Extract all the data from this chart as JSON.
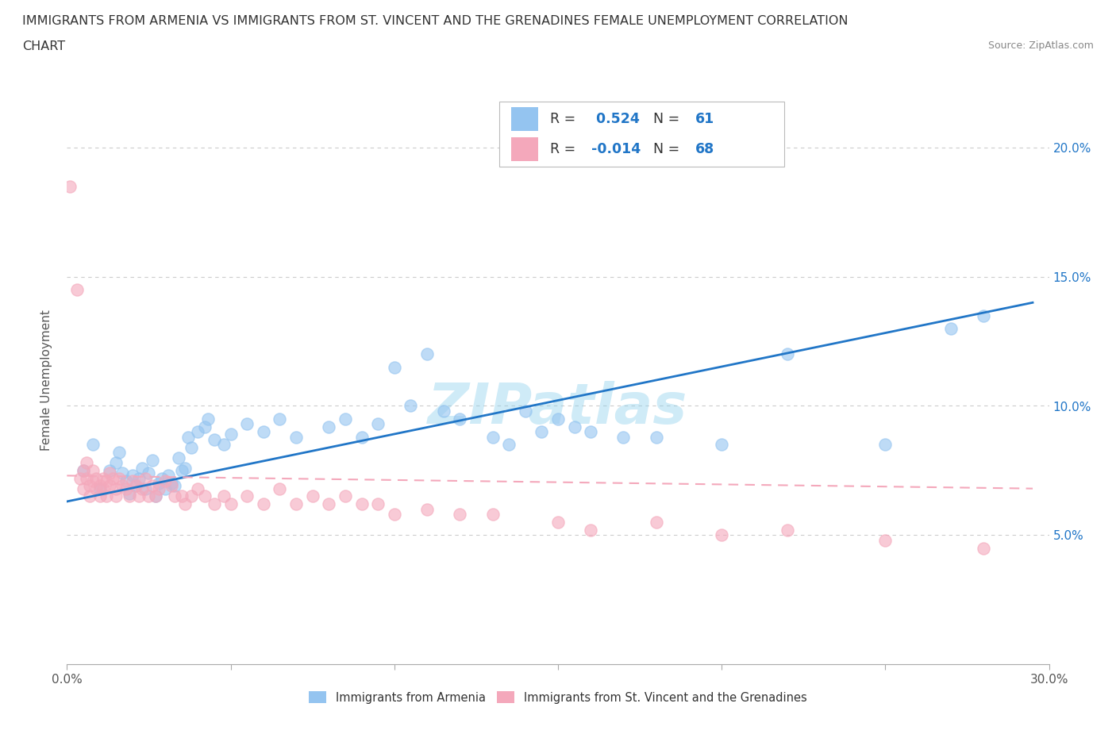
{
  "title_line1": "IMMIGRANTS FROM ARMENIA VS IMMIGRANTS FROM ST. VINCENT AND THE GRENADINES FEMALE UNEMPLOYMENT CORRELATION",
  "title_line2": "CHART",
  "source": "Source: ZipAtlas.com",
  "ylabel": "Female Unemployment",
  "xlim": [
    0.0,
    0.3
  ],
  "ylim": [
    0.0,
    0.22
  ],
  "xticks": [
    0.0,
    0.05,
    0.1,
    0.15,
    0.2,
    0.25,
    0.3
  ],
  "yticks": [
    0.05,
    0.1,
    0.15,
    0.2
  ],
  "ytick_labels_right": [
    "5.0%",
    "10.0%",
    "15.0%",
    "20.0%"
  ],
  "armenia_color": "#94C4F0",
  "svg_color": "#F4A8BB",
  "armenia_R": 0.524,
  "armenia_N": 61,
  "svg_R": -0.014,
  "svg_N": 68,
  "armenia_line_color": "#2176C7",
  "svg_line_color": "#F4A8BB",
  "watermark": "ZIPatlas",
  "armenia_scatter_x": [
    0.005,
    0.008,
    0.01,
    0.013,
    0.015,
    0.016,
    0.017,
    0.018,
    0.019,
    0.02,
    0.021,
    0.022,
    0.023,
    0.024,
    0.025,
    0.026,
    0.027,
    0.028,
    0.029,
    0.03,
    0.031,
    0.032,
    0.033,
    0.034,
    0.035,
    0.036,
    0.037,
    0.038,
    0.04,
    0.042,
    0.043,
    0.045,
    0.048,
    0.05,
    0.055,
    0.06,
    0.065,
    0.07,
    0.08,
    0.085,
    0.09,
    0.095,
    0.1,
    0.105,
    0.11,
    0.115,
    0.12,
    0.13,
    0.135,
    0.14,
    0.145,
    0.15,
    0.155,
    0.16,
    0.17,
    0.18,
    0.2,
    0.22,
    0.25,
    0.27,
    0.28
  ],
  "armenia_scatter_y": [
    0.075,
    0.085,
    0.068,
    0.075,
    0.078,
    0.082,
    0.074,
    0.071,
    0.066,
    0.073,
    0.069,
    0.072,
    0.076,
    0.068,
    0.074,
    0.079,
    0.065,
    0.07,
    0.072,
    0.068,
    0.073,
    0.07,
    0.069,
    0.08,
    0.075,
    0.076,
    0.088,
    0.084,
    0.09,
    0.092,
    0.095,
    0.087,
    0.085,
    0.089,
    0.093,
    0.09,
    0.095,
    0.088,
    0.092,
    0.095,
    0.088,
    0.093,
    0.115,
    0.1,
    0.12,
    0.098,
    0.095,
    0.088,
    0.085,
    0.098,
    0.09,
    0.095,
    0.092,
    0.09,
    0.088,
    0.088,
    0.085,
    0.12,
    0.085,
    0.13,
    0.135
  ],
  "svg_scatter_x": [
    0.001,
    0.003,
    0.004,
    0.005,
    0.005,
    0.006,
    0.006,
    0.007,
    0.007,
    0.008,
    0.008,
    0.009,
    0.009,
    0.01,
    0.01,
    0.011,
    0.011,
    0.012,
    0.012,
    0.013,
    0.013,
    0.014,
    0.015,
    0.015,
    0.016,
    0.017,
    0.018,
    0.019,
    0.02,
    0.021,
    0.022,
    0.023,
    0.024,
    0.025,
    0.026,
    0.027,
    0.028,
    0.03,
    0.032,
    0.033,
    0.035,
    0.036,
    0.038,
    0.04,
    0.042,
    0.045,
    0.048,
    0.05,
    0.055,
    0.06,
    0.065,
    0.07,
    0.075,
    0.08,
    0.085,
    0.09,
    0.095,
    0.1,
    0.11,
    0.12,
    0.13,
    0.15,
    0.16,
    0.18,
    0.2,
    0.22,
    0.25,
    0.28
  ],
  "svg_scatter_y": [
    0.185,
    0.145,
    0.072,
    0.075,
    0.068,
    0.078,
    0.072,
    0.065,
    0.069,
    0.071,
    0.075,
    0.068,
    0.072,
    0.065,
    0.069,
    0.072,
    0.068,
    0.071,
    0.065,
    0.074,
    0.069,
    0.072,
    0.065,
    0.068,
    0.072,
    0.069,
    0.068,
    0.065,
    0.071,
    0.069,
    0.065,
    0.068,
    0.072,
    0.065,
    0.069,
    0.065,
    0.068,
    0.071,
    0.069,
    0.065,
    0.065,
    0.062,
    0.065,
    0.068,
    0.065,
    0.062,
    0.065,
    0.062,
    0.065,
    0.062,
    0.068,
    0.062,
    0.065,
    0.062,
    0.065,
    0.062,
    0.062,
    0.058,
    0.06,
    0.058,
    0.058,
    0.055,
    0.052,
    0.055,
    0.05,
    0.052,
    0.048,
    0.045
  ],
  "armenia_trendline_x": [
    0.0,
    0.295
  ],
  "armenia_trendline_y": [
    0.063,
    0.14
  ],
  "svg_trendline_x": [
    0.0,
    0.295
  ],
  "svg_trendline_y": [
    0.073,
    0.068
  ]
}
